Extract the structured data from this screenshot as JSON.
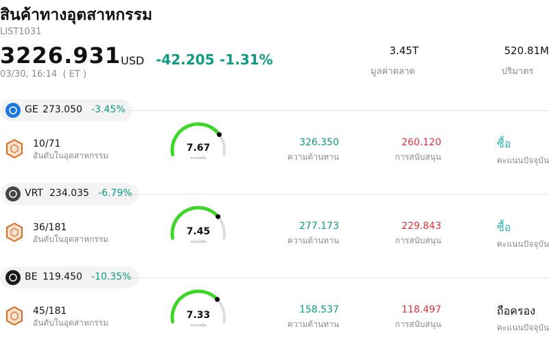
{
  "header": {
    "title": "สินค้าทางอุตสาหกรรม",
    "code": "LIST1031",
    "price": "3226.931",
    "currency": "USD",
    "change": "-42.205",
    "change_pct": "-1.31%",
    "time": "03/30, 16:14  ( ET )",
    "stats": [
      {
        "value": "3.45T",
        "label": "มูลค่าตลาด"
      },
      {
        "value": "520.81M",
        "label": "ปริมาตร"
      }
    ]
  },
  "gauge_lim": [
    0,
    10
  ],
  "stocks": [
    {
      "ticker": "GE",
      "price": "273.050",
      "change": "-3.45%",
      "icon_color": "#1e78e0",
      "rank": "10/71",
      "rank_label": "อันดับในอุตสาหกรรม",
      "score": 7.67,
      "score_label": "คะแนนหุ้น",
      "resistance": "326.350",
      "resistance_label": "ความต้านทาน",
      "support": "260.120",
      "support_label": "การสนับสนุน",
      "rating": "ซื้อ",
      "rating_color": "#2ab8b0",
      "rating_label": "คะแนนปัจจุบัน"
    },
    {
      "ticker": "VRT",
      "price": "234.035",
      "change": "-6.79%",
      "icon_color": "#444444",
      "rank": "36/181",
      "rank_label": "อันดับในอุตสาหกรรม",
      "score": 7.45,
      "score_label": "คะแนนหุ้น",
      "resistance": "277.173",
      "resistance_label": "ความต้านทาน",
      "support": "229.843",
      "support_label": "การสนับสนุน",
      "rating": "ซื้อ",
      "rating_color": "#2ab8b0",
      "rating_label": "คะแนนปัจจุบัน"
    },
    {
      "ticker": "BE",
      "price": "119.450",
      "change": "-10.35%",
      "icon_color": "#1a1a1a",
      "rank": "45/181",
      "rank_label": "อันดับในอุตสาหกรรม",
      "score": 7.33,
      "score_label": "คะแนนหุ้น",
      "resistance": "158.537",
      "resistance_label": "ความต้านทาน",
      "support": "118.497",
      "support_label": "การสนับสนุน",
      "rating": "ถือครอง",
      "rating_color": "#111111",
      "rating_label": "คะแนนปัจจุบัน"
    }
  ]
}
